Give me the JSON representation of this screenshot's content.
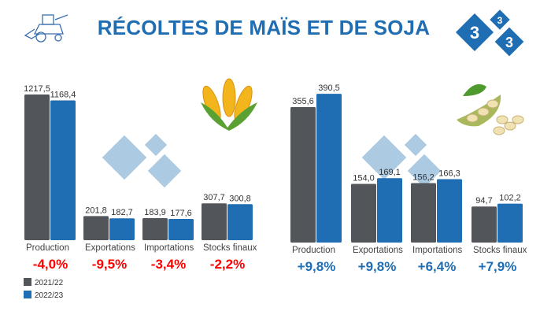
{
  "title": "RÉCOLTES DE MAÏS ET DE SOJA",
  "colors": {
    "series_2021": "#525559",
    "series_2022": "#1f6db3",
    "negative": "#ff0000",
    "positive": "#1f6db3",
    "watermark": "#a9c8e2"
  },
  "logo": {
    "text": "3 3 3"
  },
  "icons": {
    "header_left": "harvester-icon",
    "corn": "corn-icon",
    "soy": "soybean-icon"
  },
  "legend": [
    "2021/22",
    "2022/23"
  ],
  "chart_data": [
    {
      "type": "bar",
      "crop": "maïs",
      "categories": [
        "Production",
        "Exportations",
        "Importations",
        "Stocks finaux"
      ],
      "series": [
        {
          "name": "2021/22",
          "values": [
            1217.5,
            201.8,
            183.9,
            307.7
          ],
          "labels": [
            "1217,5",
            "201,8",
            "183,9",
            "307,7"
          ]
        },
        {
          "name": "2022/23",
          "values": [
            1168.4,
            182.7,
            177.6,
            300.8
          ],
          "labels": [
            "1168,4",
            "182,7",
            "177,6",
            "300,8"
          ]
        }
      ],
      "changes": [
        "-4,0%",
        "-9,5%",
        "-3,4%",
        "-2,2%"
      ],
      "grid": false
    },
    {
      "type": "bar",
      "crop": "soja",
      "categories": [
        "Production",
        "Exportations",
        "Importations",
        "Stocks finaux"
      ],
      "series": [
        {
          "name": "2021/22",
          "values": [
            355.6,
            154.0,
            156.2,
            94.7
          ],
          "labels": [
            "355,6",
            "154,0",
            "156,2",
            "94,7"
          ]
        },
        {
          "name": "2022/23",
          "values": [
            390.5,
            169.1,
            166.3,
            102.2
          ],
          "labels": [
            "390,5",
            "169,1",
            "166,3",
            "102,2"
          ]
        }
      ],
      "changes": [
        "+9,8%",
        "+9,8%",
        "+6,4%",
        "+7,9%"
      ],
      "grid": false
    }
  ]
}
